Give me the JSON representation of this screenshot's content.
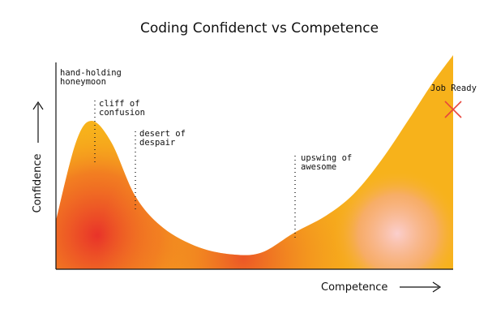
{
  "chart_data": {
    "type": "area",
    "title": "Coding Confidenct vs Competence",
    "xlabel": "Competence",
    "ylabel": "Confidence",
    "x": [
      0,
      5,
      9,
      14,
      20,
      27,
      36,
      45,
      52,
      60,
      68,
      75,
      82,
      89,
      95,
      100
    ],
    "y": [
      20,
      52,
      61,
      52,
      30,
      17,
      9,
      6,
      7,
      15,
      22,
      31,
      45,
      62,
      77,
      88
    ],
    "xlim": [
      0,
      100
    ],
    "ylim": [
      0,
      100
    ],
    "grid": false,
    "annotations": [
      {
        "lines": [
          "hand-holding",
          "honeymoon"
        ],
        "x": 9
      },
      {
        "lines": [
          "cliff of",
          "confusion"
        ],
        "x": 10
      },
      {
        "lines": [
          "desert of",
          "despair"
        ],
        "x": 20
      },
      {
        "lines": [
          "upswing of",
          "awesome"
        ],
        "x": 60
      },
      {
        "lines": [
          "Job Ready"
        ],
        "x": 100
      }
    ],
    "colors": {
      "outer": "#f7b21b",
      "core": "#ea3b2b",
      "pink": "#f7b4c2",
      "axis": "#111111",
      "marker": "#e8453c"
    }
  }
}
